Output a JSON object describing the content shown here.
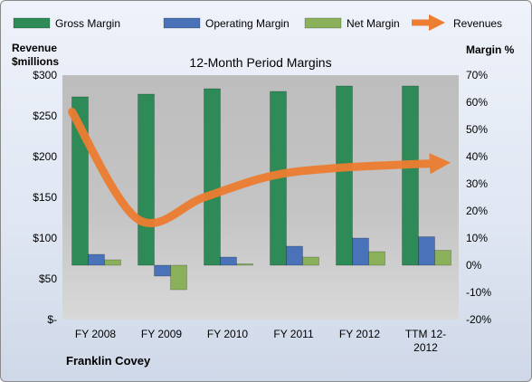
{
  "chart_data": {
    "type": "bar",
    "title": "12-Month Period Margins",
    "categories": [
      "FY 2008",
      "FY 2009",
      "FY 2010",
      "FY 2011",
      "FY 2012",
      "TTM 12-2012"
    ],
    "series": [
      {
        "name": "Gross Margin",
        "kind": "bar",
        "axis": "right",
        "color": "#2e8b57",
        "values": [
          62,
          63,
          65,
          64,
          66,
          66
        ]
      },
      {
        "name": "Operating Margin",
        "kind": "bar",
        "axis": "right",
        "color": "#4a72b8",
        "values": [
          4,
          -4,
          3,
          7,
          10,
          10.5
        ]
      },
      {
        "name": "Net Margin",
        "kind": "bar",
        "axis": "right",
        "color": "#8bb05a",
        "values": [
          2,
          -9,
          0.5,
          3,
          5,
          5.5
        ]
      },
      {
        "name": "Revenues",
        "kind": "line",
        "axis": "left",
        "color": "#ed7d31",
        "values": [
          255,
          123,
          150,
          176,
          186,
          192
        ]
      }
    ],
    "ylabel_left": "Revenue\n$millions",
    "ylabel_right": "Margin %",
    "left_axis": {
      "min": 0,
      "max": 300,
      "ticks": [
        0,
        50,
        100,
        150,
        200,
        250,
        300
      ],
      "tick_labels": [
        "$-",
        "$50",
        "$100",
        "$150",
        "$200",
        "$250",
        "$300"
      ]
    },
    "right_axis": {
      "min": -20,
      "max": 70,
      "ticks": [
        -20,
        -10,
        0,
        10,
        20,
        30,
        40,
        50,
        60,
        70
      ],
      "tick_labels": [
        "-20%",
        "-10%",
        "0%",
        "10%",
        "20%",
        "30%",
        "40%",
        "50%",
        "60%",
        "70%"
      ]
    },
    "grid": false,
    "legend": "top",
    "company": "Franklin Covey"
  }
}
